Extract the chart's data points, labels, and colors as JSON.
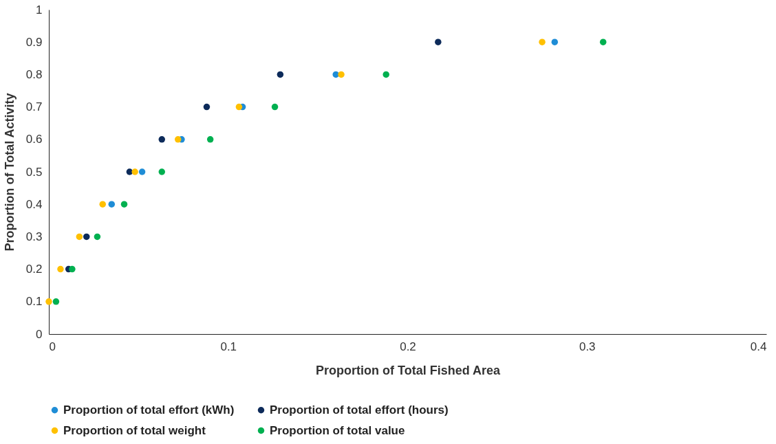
{
  "chart_data": {
    "type": "scatter",
    "xlabel": "Proportion of Total Fished Area",
    "ylabel": "Proportion of Total Activity",
    "xlim": [
      0,
      0.4
    ],
    "xticks": [
      0,
      0.1,
      0.2,
      0.3,
      0.4
    ],
    "ylim": [
      0,
      1
    ],
    "yticks": [
      0,
      0.1,
      0.2,
      0.3,
      0.4,
      0.5,
      0.6,
      0.7,
      0.8,
      0.9,
      1
    ],
    "grid": false,
    "legend": "bottom",
    "marker": "circle",
    "series": [
      {
        "name": "Proportion of total effort (kWh)",
        "color": "#1f8dd6",
        "x": [
          null,
          null,
          null,
          0.035,
          0.052,
          0.074,
          0.108,
          0.16,
          0.282
        ],
        "values": [
          null,
          null,
          null,
          0.4,
          0.5,
          0.6,
          0.7,
          0.8,
          0.9
        ]
      },
      {
        "name": "Proportion of total effort (hours)",
        "color": "#0d2b5a",
        "x": [
          null,
          0.011,
          0.021,
          null,
          0.045,
          0.063,
          0.088,
          0.129,
          0.217
        ],
        "values": [
          null,
          0.2,
          0.3,
          null,
          0.5,
          0.6,
          0.7,
          0.8,
          0.9
        ]
      },
      {
        "name": "Proportion of total weight",
        "color": "#ffc000",
        "x": [
          0.0,
          0.0065,
          0.017,
          0.03,
          0.048,
          0.072,
          0.106,
          0.163,
          0.275
        ],
        "values": [
          0.1,
          0.2,
          0.3,
          0.4,
          0.5,
          0.6,
          0.7,
          0.8,
          0.9
        ]
      },
      {
        "name": "Proportion of total value",
        "color": "#00b050",
        "x": [
          0.004,
          0.013,
          0.027,
          0.042,
          0.063,
          0.09,
          0.126,
          0.188,
          0.309
        ],
        "values": [
          0.1,
          0.2,
          0.3,
          0.4,
          0.5,
          0.6,
          0.7,
          0.8,
          0.9
        ]
      }
    ]
  }
}
